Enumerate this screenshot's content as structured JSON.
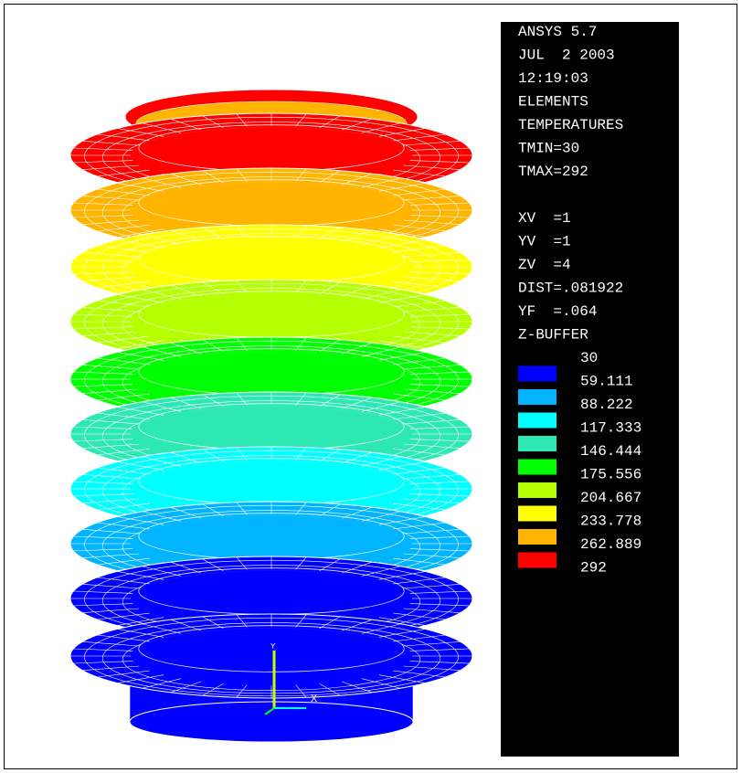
{
  "info_lines": [
    "ANSYS 5.7",
    "JUL  2 2003",
    "12:19:03",
    "ELEMENTS",
    "TEMPERATURES",
    "TMIN=30",
    "TMAX=292"
  ],
  "view_lines": [
    "XV  =1",
    "YV  =1",
    "ZV  =4",
    "DIST=.081922",
    "YF  =.064",
    "Z-BUFFER"
  ],
  "legend": {
    "min_label": "30",
    "items": [
      {
        "label": "59.111",
        "color": "#0000ff"
      },
      {
        "label": "88.222",
        "color": "#00b4ff"
      },
      {
        "label": "117.333",
        "color": "#00ffff"
      },
      {
        "label": "146.444",
        "color": "#2ee8b4"
      },
      {
        "label": "175.556",
        "color": "#00ff00"
      },
      {
        "label": "204.667",
        "color": "#b4ff00"
      },
      {
        "label": "233.778",
        "color": "#ffff00"
      },
      {
        "label": "262.889",
        "color": "#ffb400"
      },
      {
        "label": "292",
        "color": "#ff0000"
      }
    ]
  },
  "triad": {
    "x_label": "X",
    "y_label": "Y"
  }
}
